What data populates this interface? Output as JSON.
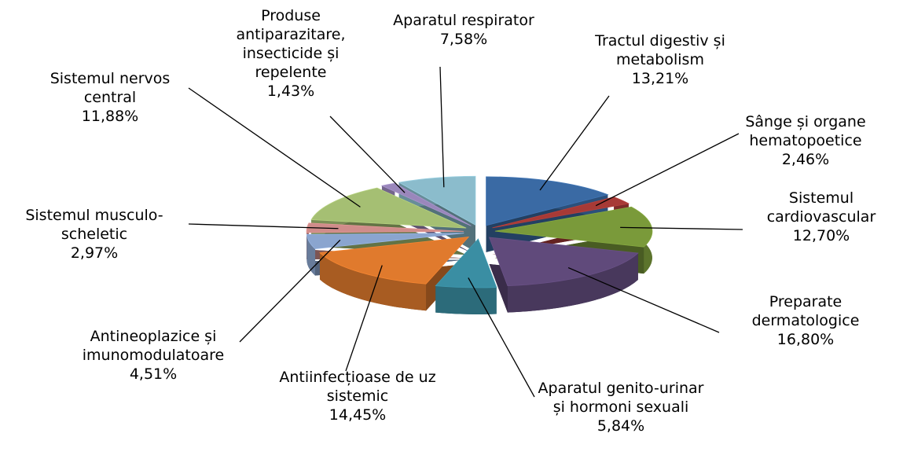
{
  "chart_data": {
    "type": "pie3d",
    "categories": [
      "Tractul digestiv și metabolism",
      "Sânge și organe hematopoetice",
      "Sistemul cardiovascular",
      "Preparate dermatologice",
      "Aparatul genito-urinar și hormoni sexuali",
      "Antiinfecțioase de uz sistemic",
      "Antineoplazice și imunomodulatoare",
      "Sistemul musculo-scheletic",
      "Sistemul nervos central",
      "Produse antiparazitare, insecticide și repelente",
      "Aparatul respirator"
    ],
    "values": [
      13.21,
      2.46,
      12.7,
      16.8,
      5.84,
      14.45,
      4.51,
      2.97,
      11.88,
      1.43,
      7.58
    ],
    "value_labels": [
      "13,21%",
      "2,46%",
      "12,70%",
      "16,80%",
      "5,84%",
      "14,45%",
      "4,51%",
      "2,97%",
      "11,88%",
      "1,43%",
      "7,58%"
    ],
    "colors": [
      "#3a6aa4",
      "#a73a36",
      "#7a9a3a",
      "#604a7b",
      "#3a8ea3",
      "#e07a2d",
      "#8aa5cf",
      "#d08c8a",
      "#a5bf73",
      "#9a87bb",
      "#8bbccc"
    ]
  }
}
